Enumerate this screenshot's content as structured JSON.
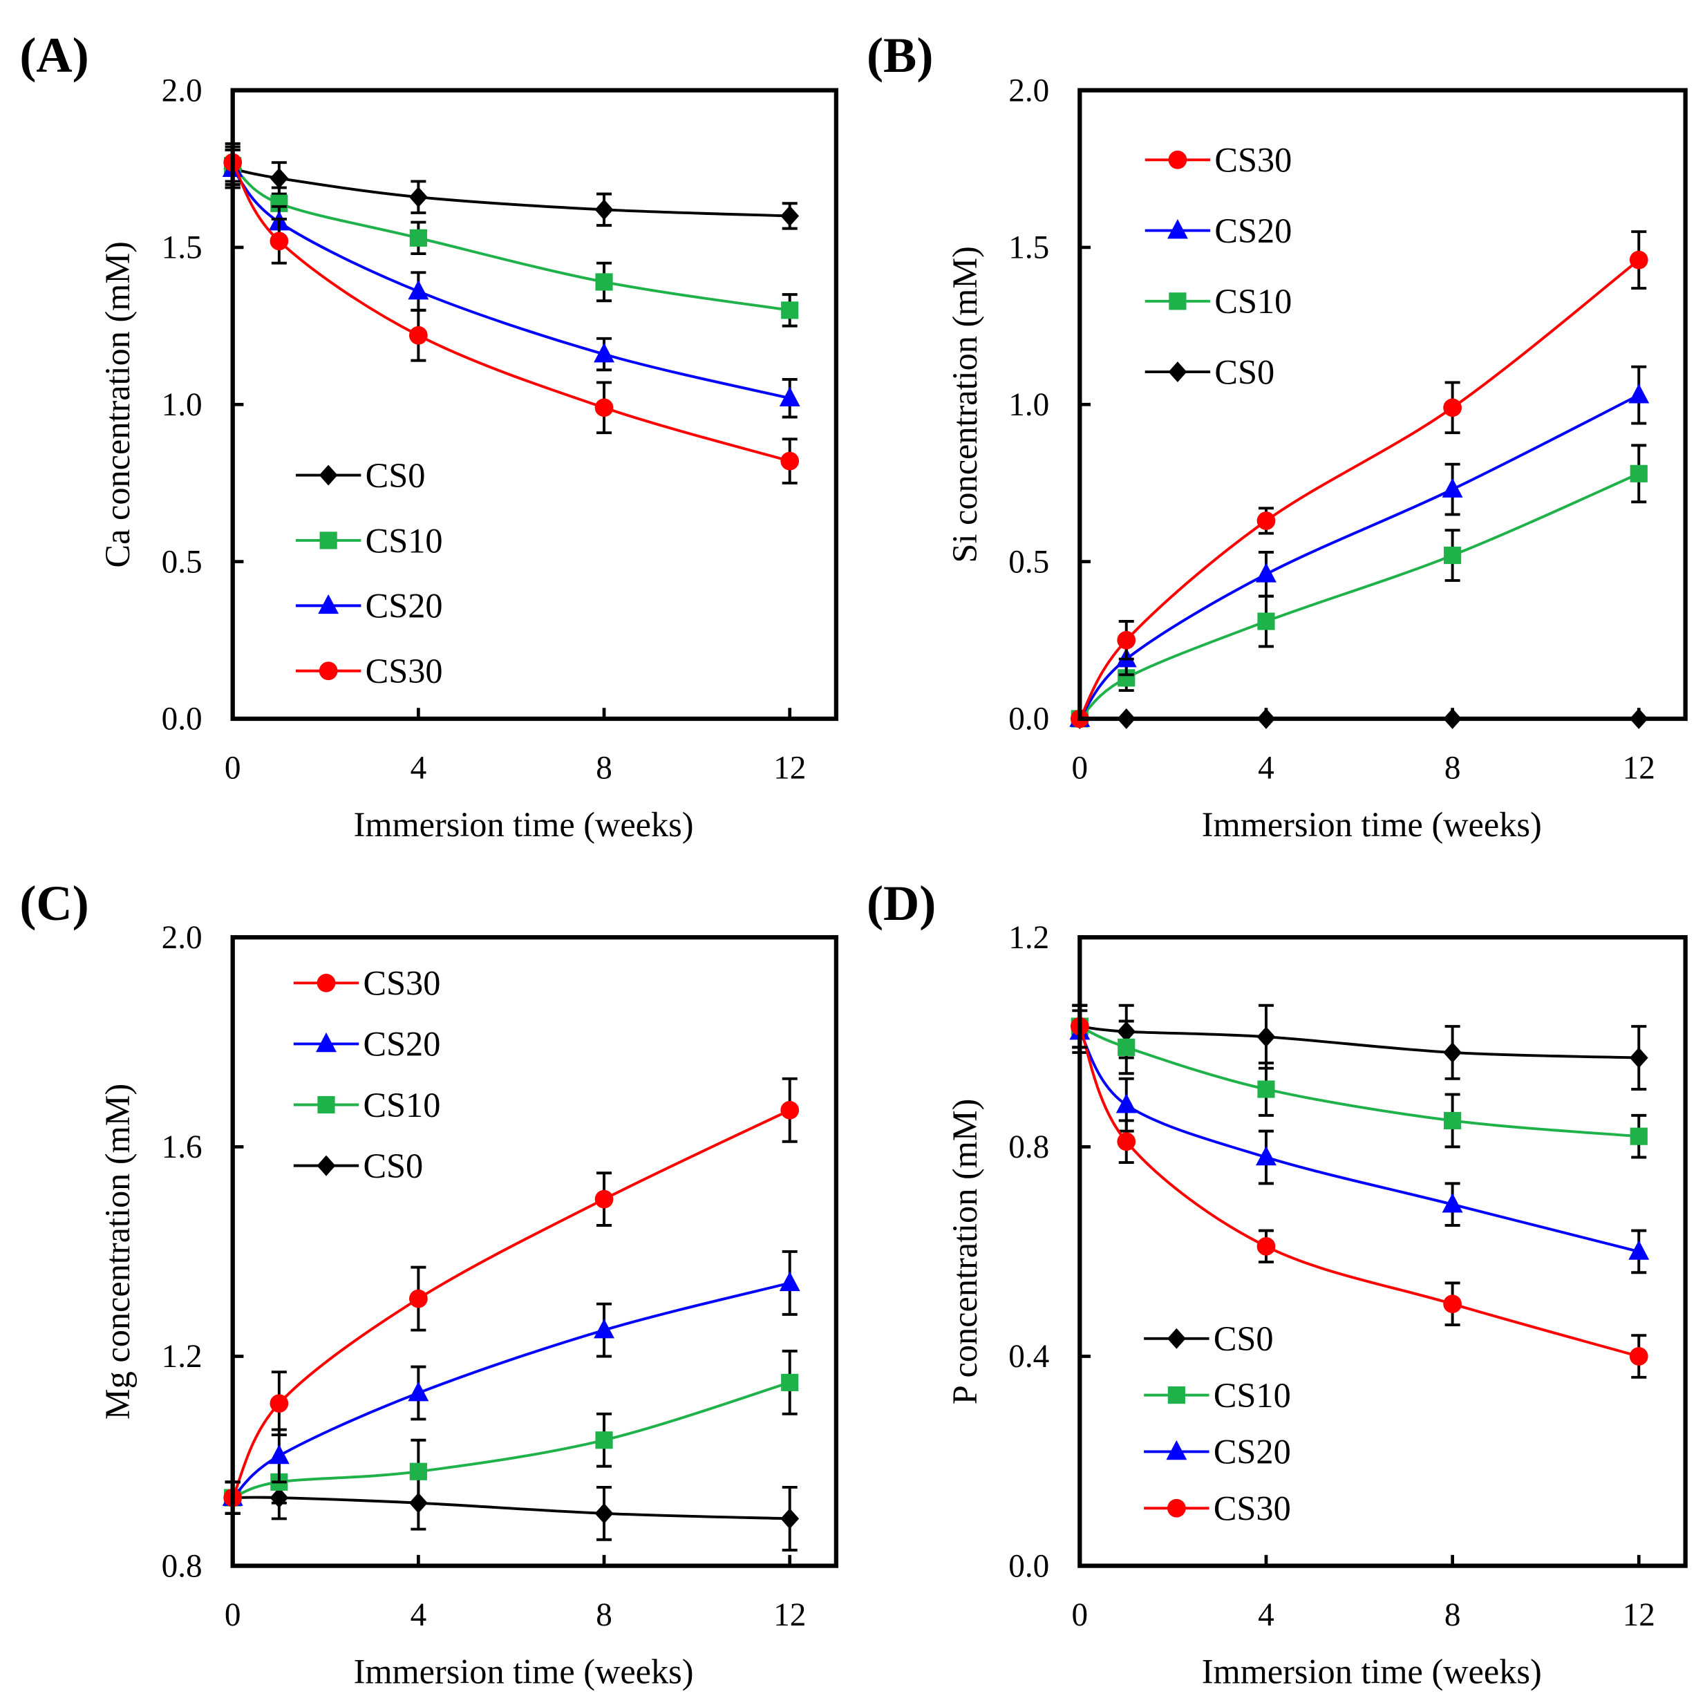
{
  "chart_data": [
    {
      "panel_label": "(A)",
      "type": "line",
      "xlabel": "Immersion time (weeks)",
      "ylabel": "Ca concentration  (mM)",
      "x": [
        0,
        1,
        4,
        8,
        12
      ],
      "xticks": [
        0,
        4,
        8,
        12
      ],
      "xlim": [
        0,
        13
      ],
      "ylim": [
        0,
        2.0
      ],
      "yticks": [
        "0.0",
        "0.5",
        "1.0",
        "1.5",
        "2.0"
      ],
      "ytick_values": [
        0,
        0.5,
        1.0,
        1.5,
        2.0
      ],
      "legend_position": "bottom-left",
      "legend_order": [
        "CS0",
        "CS10",
        "CS20",
        "CS30"
      ],
      "series": [
        {
          "name": "CS0",
          "color": "#000000",
          "marker": "diamond",
          "values": [
            1.75,
            1.72,
            1.66,
            1.62,
            1.6
          ],
          "err": [
            0.06,
            0.05,
            0.05,
            0.05,
            0.04
          ]
        },
        {
          "name": "CS10",
          "color": "#1fb24a",
          "marker": "square",
          "values": [
            1.76,
            1.64,
            1.53,
            1.39,
            1.3
          ],
          "err": [
            0.06,
            0.05,
            0.05,
            0.06,
            0.05
          ]
        },
        {
          "name": "CS20",
          "color": "#0000ff",
          "marker": "triangle",
          "values": [
            1.75,
            1.58,
            1.36,
            1.16,
            1.02
          ],
          "err": [
            0.06,
            0.05,
            0.06,
            0.05,
            0.06
          ]
        },
        {
          "name": "CS30",
          "color": "#ff0000",
          "marker": "circle",
          "values": [
            1.77,
            1.52,
            1.22,
            0.99,
            0.82
          ],
          "err": [
            0.06,
            0.07,
            0.08,
            0.08,
            0.07
          ]
        }
      ]
    },
    {
      "panel_label": "(B)",
      "type": "line",
      "xlabel": "Immersion time (weeks)",
      "ylabel": "Si concentration  (mM)",
      "x": [
        0,
        1,
        4,
        8,
        12
      ],
      "xticks": [
        0,
        4,
        8,
        12
      ],
      "xlim": [
        0,
        13
      ],
      "ylim": [
        0,
        2.0
      ],
      "yticks": [
        "0.0",
        "0.5",
        "1.0",
        "1.5",
        "2.0"
      ],
      "ytick_values": [
        0,
        0.5,
        1.0,
        1.5,
        2.0
      ],
      "legend_position": "top-left",
      "legend_order": [
        "CS30",
        "CS20",
        "CS10",
        "CS0"
      ],
      "series": [
        {
          "name": "CS0",
          "color": "#000000",
          "marker": "diamond",
          "values": [
            0,
            0,
            0,
            0,
            0
          ],
          "err": [
            0,
            0,
            0,
            0,
            0
          ]
        },
        {
          "name": "CS10",
          "color": "#1fb24a",
          "marker": "square",
          "values": [
            0,
            0.13,
            0.31,
            0.52,
            0.78
          ],
          "err": [
            0.01,
            0.04,
            0.08,
            0.08,
            0.09
          ]
        },
        {
          "name": "CS20",
          "color": "#0000ff",
          "marker": "triangle",
          "values": [
            0,
            0.19,
            0.46,
            0.73,
            1.03
          ],
          "err": [
            0.01,
            0.05,
            0.07,
            0.08,
            0.09
          ]
        },
        {
          "name": "CS30",
          "color": "#ff0000",
          "marker": "circle",
          "values": [
            0,
            0.25,
            0.63,
            0.99,
            1.46
          ],
          "err": [
            0.01,
            0.06,
            0.04,
            0.08,
            0.09
          ]
        }
      ]
    },
    {
      "panel_label": "(C)",
      "type": "line",
      "xlabel": "Immersion time (weeks)",
      "ylabel": "Mg concentration  (mM)",
      "x": [
        0,
        1,
        4,
        8,
        12
      ],
      "xticks": [
        0,
        4,
        8,
        12
      ],
      "xlim": [
        0,
        13
      ],
      "ylim": [
        0.8,
        2.0
      ],
      "yticks": [
        "0.8",
        "1.2",
        "1.6",
        "2.0"
      ],
      "ytick_values": [
        0.8,
        1.2,
        1.6,
        2.0
      ],
      "legend_position": "top-left",
      "legend_order": [
        "CS30",
        "CS20",
        "CS10",
        "CS0"
      ],
      "series": [
        {
          "name": "CS0",
          "color": "#000000",
          "marker": "diamond",
          "values": [
            0.93,
            0.93,
            0.92,
            0.9,
            0.89
          ],
          "err": [
            0.03,
            0.04,
            0.05,
            0.05,
            0.06
          ]
        },
        {
          "name": "CS10",
          "color": "#1fb24a",
          "marker": "square",
          "values": [
            0.93,
            0.96,
            0.98,
            1.04,
            1.15
          ],
          "err": [
            0.03,
            0.04,
            0.06,
            0.05,
            0.06
          ]
        },
        {
          "name": "CS20",
          "color": "#0000ff",
          "marker": "triangle",
          "values": [
            0.93,
            1.01,
            1.13,
            1.25,
            1.34
          ],
          "err": [
            0.03,
            0.05,
            0.05,
            0.05,
            0.06
          ]
        },
        {
          "name": "CS30",
          "color": "#ff0000",
          "marker": "circle",
          "values": [
            0.93,
            1.11,
            1.31,
            1.5,
            1.67
          ],
          "err": [
            0.03,
            0.06,
            0.06,
            0.05,
            0.06
          ]
        }
      ]
    },
    {
      "panel_label": "(D)",
      "type": "line",
      "xlabel": "Immersion time (weeks)",
      "ylabel": "P concentration  (mM)",
      "x": [
        0,
        1,
        4,
        8,
        12
      ],
      "xticks": [
        0,
        4,
        8,
        12
      ],
      "xlim": [
        0,
        13
      ],
      "ylim": [
        0,
        1.2
      ],
      "yticks": [
        "0.0",
        "0.4",
        "0.8",
        "1.2"
      ],
      "ytick_values": [
        0,
        0.4,
        0.8,
        1.2
      ],
      "legend_position": "bottom-left",
      "legend_order": [
        "CS0",
        "CS10",
        "CS20",
        "CS30"
      ],
      "series": [
        {
          "name": "CS0",
          "color": "#000000",
          "marker": "diamond",
          "values": [
            1.03,
            1.02,
            1.01,
            0.98,
            0.97
          ],
          "err": [
            0.04,
            0.05,
            0.06,
            0.05,
            0.06
          ]
        },
        {
          "name": "CS10",
          "color": "#1fb24a",
          "marker": "square",
          "values": [
            1.03,
            0.99,
            0.91,
            0.85,
            0.82
          ],
          "err": [
            0.04,
            0.05,
            0.05,
            0.05,
            0.04
          ]
        },
        {
          "name": "CS20",
          "color": "#0000ff",
          "marker": "triangle",
          "values": [
            1.02,
            0.88,
            0.78,
            0.69,
            0.6
          ],
          "err": [
            0.04,
            0.05,
            0.05,
            0.04,
            0.04
          ]
        },
        {
          "name": "CS30",
          "color": "#ff0000",
          "marker": "circle",
          "values": [
            1.03,
            0.81,
            0.61,
            0.5,
            0.4
          ],
          "err": [
            0.04,
            0.04,
            0.03,
            0.04,
            0.04
          ]
        }
      ]
    }
  ]
}
